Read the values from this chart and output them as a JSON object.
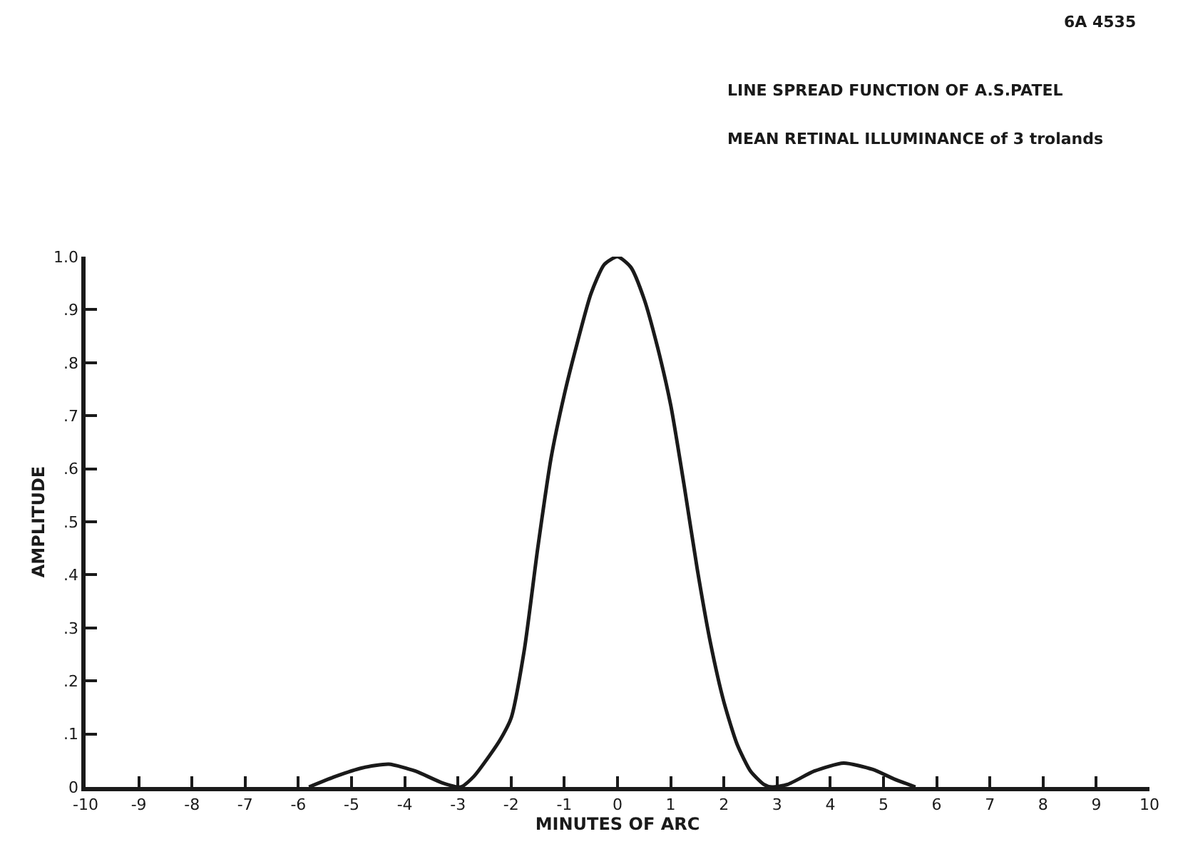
{
  "chart_data": {
    "type": "line",
    "title": "LINE SPREAD FUNCTION OF A.S.PATEL",
    "subtitle": "MEAN RETINAL ILLUMINANCE of 3 trolands",
    "xlabel": "MINUTES OF ARC",
    "ylabel": "AMPLITUDE",
    "annotations": [
      "6A 4535"
    ],
    "x": [
      -5.8,
      -5.3,
      -4.8,
      -4.3,
      -3.8,
      -3.3,
      -2.95,
      -2.7,
      -2.4,
      -2.2,
      -2,
      -1.75,
      -1.5,
      -1.25,
      -1,
      -0.75,
      -0.5,
      -0.25,
      0,
      0.25,
      0.5,
      0.75,
      1,
      1.25,
      1.5,
      1.75,
      2,
      2.25,
      2.5,
      2.75,
      2.9,
      3.2,
      3.7,
      4.25,
      4.8,
      5.2,
      5.6
    ],
    "series": [
      {
        "color": "#1a1a1a",
        "values": [
          0,
          0.02,
          0.036,
          0.043,
          0.03,
          0.008,
          0,
          0.02,
          0.06,
          0.09,
          0.13,
          0.26,
          0.45,
          0.62,
          0.74,
          0.84,
          0.93,
          0.985,
          1.0,
          0.98,
          0.92,
          0.83,
          0.72,
          0.57,
          0.41,
          0.27,
          0.16,
          0.08,
          0.03,
          0.005,
          0,
          0.005,
          0.03,
          0.045,
          0.033,
          0.015,
          0
        ]
      }
    ],
    "xlim": [
      -10,
      10
    ],
    "xticks": [
      -10,
      -9,
      -8,
      -7,
      -6,
      -5,
      -4,
      -3,
      -2,
      -1,
      0,
      1,
      2,
      3,
      4,
      5,
      6,
      7,
      8,
      9,
      10
    ],
    "ylim": [
      0,
      1
    ],
    "yticks": [
      {
        "value": 0,
        "label": "0"
      },
      {
        "value": 0.1,
        "label": ".1"
      },
      {
        "value": 0.2,
        "label": ".2"
      },
      {
        "value": 0.3,
        "label": ".3"
      },
      {
        "value": 0.4,
        "label": ".4"
      },
      {
        "value": 0.5,
        "label": ".5"
      },
      {
        "value": 0.6,
        "label": ".6"
      },
      {
        "value": 0.7,
        "label": ".7"
      },
      {
        "value": 0.8,
        "label": ".8"
      },
      {
        "value": 0.9,
        "label": ".9"
      },
      {
        "value": 1,
        "label": "1.0"
      }
    ],
    "marker": "none",
    "line_style": "solid"
  }
}
